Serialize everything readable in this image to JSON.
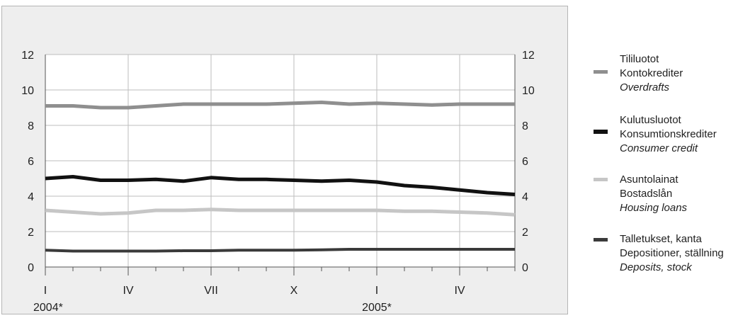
{
  "colors": {
    "overdrafts": "#8f8f8f",
    "consumer_credit": "#111111",
    "housing_loans": "#c6c6c6",
    "deposits": "#3a3a3a",
    "plot_background": "#ffffff",
    "gridline": "#bdbdbd"
  },
  "legend": {
    "items": [
      {
        "fi": "Tililuotot",
        "sv": "Kontokrediter",
        "en": "Overdrafts"
      },
      {
        "fi": "Kulutusluotot",
        "sv": "Konsumtionskrediter",
        "en": "Consumer credit"
      },
      {
        "fi": "Asuntolainat",
        "sv": "Bostadslån",
        "en": "Housing loans"
      },
      {
        "fi": "Talletukset, kanta",
        "sv": "Depositioner, ställning",
        "en": "Deposits, stock"
      }
    ]
  },
  "chart_data": {
    "type": "line",
    "x_month_labels": [
      "I",
      "IV",
      "VII",
      "X",
      "I",
      "IV"
    ],
    "year_labels": [
      "2004*",
      "2005*"
    ],
    "ylim": [
      0,
      12
    ],
    "y_ticks": [
      0,
      2,
      4,
      6,
      8,
      10,
      12
    ],
    "secondary_y_axis": true,
    "grid": true,
    "legend_placement": "right",
    "x": [
      "2004-01",
      "2004-02",
      "2004-03",
      "2004-04",
      "2004-05",
      "2004-06",
      "2004-07",
      "2004-08",
      "2004-09",
      "2004-10",
      "2004-11",
      "2004-12",
      "2005-01",
      "2005-02",
      "2005-03",
      "2005-04",
      "2005-05",
      "2005-06"
    ],
    "series": [
      {
        "name": "Tililuotot / Kontokrediter / Overdrafts",
        "values": [
          9.1,
          9.1,
          9.0,
          9.0,
          9.1,
          9.2,
          9.2,
          9.2,
          9.2,
          9.25,
          9.3,
          9.2,
          9.25,
          9.2,
          9.15,
          9.2,
          9.2,
          9.2
        ]
      },
      {
        "name": "Kulutusluotot / Konsumtionskrediter / Consumer credit",
        "values": [
          5.0,
          5.1,
          4.9,
          4.9,
          4.95,
          4.85,
          5.05,
          4.95,
          4.95,
          4.9,
          4.85,
          4.9,
          4.8,
          4.6,
          4.5,
          4.35,
          4.2,
          4.1
        ]
      },
      {
        "name": "Asuntolainat / Bostadslån / Housing loans",
        "values": [
          3.2,
          3.1,
          3.0,
          3.05,
          3.2,
          3.2,
          3.25,
          3.2,
          3.2,
          3.2,
          3.2,
          3.2,
          3.2,
          3.15,
          3.15,
          3.1,
          3.05,
          2.95
        ]
      },
      {
        "name": "Talletukset, kanta / Depositioner, ställning / Deposits, stock",
        "values": [
          0.95,
          0.9,
          0.9,
          0.9,
          0.9,
          0.92,
          0.92,
          0.95,
          0.95,
          0.95,
          0.97,
          1.0,
          1.0,
          1.0,
          1.0,
          1.0,
          1.0,
          1.0
        ]
      }
    ]
  }
}
